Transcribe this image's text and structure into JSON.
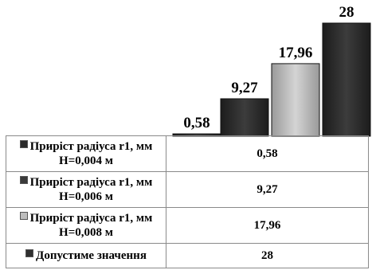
{
  "chart_data": {
    "type": "bar",
    "series": [
      {
        "name": "Приріст радіуса r1, мм\nH=0,004 м",
        "legend_lines": [
          "Приріст радіуса r1, мм",
          "H=0,004 м"
        ],
        "value": 0.58,
        "label": "0,58",
        "color": "#2b2b2b"
      },
      {
        "name": "Приріст радіуса r1, мм\nH=0,006 м",
        "legend_lines": [
          "Приріст радіуса r1, мм",
          "H=0,006 м"
        ],
        "value": 9.27,
        "label": "9,27",
        "color": "#3a3a3a"
      },
      {
        "name": "Приріст радіуса r1, мм\nH=0,008 м",
        "legend_lines": [
          "Приріст радіуса r1, мм",
          "H=0,008 м"
        ],
        "value": 17.96,
        "label": "17,96",
        "color": "#bdbdbd"
      },
      {
        "name": "Допустиме значення",
        "legend_lines": [
          "Допустиме значення"
        ],
        "value": 28,
        "label": "28",
        "color": "#2f2f2f"
      }
    ],
    "ylim": [
      0,
      28
    ],
    "grid": false,
    "legend": "data-table-below"
  }
}
